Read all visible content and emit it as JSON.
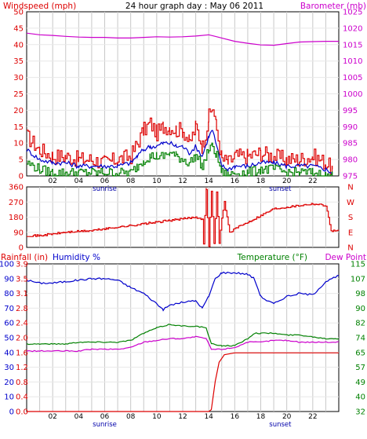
{
  "title": "24 hour graph day : May 06 2011",
  "x_ticks": [
    "02",
    "04",
    "06",
    "08",
    "10",
    "12",
    "14",
    "16",
    "18",
    "20",
    "22"
  ],
  "sunrise_label": "sunrise",
  "sunset_label": "sunset",
  "colors": {
    "red": "#dd0000",
    "green": "#008000",
    "blue": "#0000cc",
    "magenta": "#cc00cc",
    "grid": "#c8c8c8"
  },
  "chart_data": [
    {
      "type": "line",
      "panel": "wind-barometer",
      "left_axis_label": "Windspeed (mph)",
      "right_axis_label": "Barometer (mb)",
      "left_ticks": [
        "0",
        "5",
        "10",
        "15",
        "20",
        "25",
        "30",
        "35",
        "40",
        "45",
        "50"
      ],
      "right_ticks": [
        "975",
        "980",
        "985",
        "990",
        "995",
        "1000",
        "1005",
        "1010",
        "1015",
        "1020",
        "1025"
      ],
      "left_range": [
        0,
        50
      ],
      "right_range": [
        975,
        1025
      ],
      "x_range": [
        0,
        24
      ],
      "series": [
        {
          "role": "gust",
          "color": "#dd0000",
          "axis": "left",
          "x": [
            0,
            1,
            2,
            3,
            4,
            5,
            6,
            7,
            8,
            8.5,
            9,
            9.5,
            10,
            10.5,
            11,
            11.5,
            12,
            12.5,
            13,
            13.5,
            14,
            14.3,
            14.6,
            15,
            15.5,
            16,
            17,
            18,
            19,
            20,
            21,
            22,
            23,
            23.5
          ],
          "y": [
            12,
            8,
            6,
            6,
            5,
            5,
            4,
            5,
            6,
            10,
            14,
            16,
            13,
            15,
            15,
            14,
            14,
            10,
            15,
            9,
            18,
            21,
            14,
            5,
            4,
            6,
            6,
            7,
            6,
            5,
            5,
            6,
            4,
            2
          ]
        },
        {
          "role": "average",
          "color": "#0000cc",
          "axis": "left",
          "x": [
            0,
            1,
            2,
            3,
            4,
            5,
            6,
            7,
            8,
            8.5,
            9,
            9.5,
            10,
            10.5,
            11,
            11.5,
            12,
            12.5,
            13,
            13.5,
            14,
            14.3,
            14.6,
            15,
            15.5,
            16,
            17,
            18,
            19,
            20,
            21,
            22,
            23,
            23.5
          ],
          "y": [
            8,
            5,
            4,
            4,
            3,
            3,
            3,
            3,
            4,
            6,
            8,
            9,
            9,
            10,
            10,
            9,
            9,
            7,
            9,
            6,
            12,
            14,
            9,
            3,
            2,
            3,
            3,
            4,
            4,
            3,
            3,
            3,
            2,
            1
          ]
        },
        {
          "role": "minimum",
          "color": "#008000",
          "axis": "left",
          "x": [
            0,
            1,
            2,
            3,
            4,
            5,
            6,
            7,
            8,
            8.5,
            9,
            9.5,
            10,
            10.5,
            11,
            11.5,
            12,
            12.5,
            13,
            13.5,
            14,
            14.3,
            14.6,
            15,
            15.5,
            16,
            17,
            18,
            19,
            20,
            21,
            22,
            23,
            23.5
          ],
          "y": [
            4,
            2,
            1,
            1,
            1,
            1,
            1,
            1,
            1,
            3,
            5,
            6,
            6,
            6,
            7,
            6,
            5,
            4,
            6,
            3,
            8,
            9,
            6,
            1,
            0,
            1,
            1,
            2,
            2,
            1,
            1,
            1,
            0,
            0
          ]
        },
        {
          "role": "barometer",
          "color": "#cc00cc",
          "axis": "right",
          "x": [
            0,
            1,
            2,
            3,
            4,
            5,
            6,
            7,
            8,
            9,
            10,
            11,
            12,
            13,
            14,
            14.5,
            15,
            16,
            17,
            18,
            19,
            20,
            21,
            22,
            23,
            24
          ],
          "y": [
            1018.5,
            1018,
            1017.8,
            1017.5,
            1017.3,
            1017.2,
            1017.2,
            1017,
            1017,
            1017.2,
            1017.4,
            1017.3,
            1017.4,
            1017.6,
            1018,
            1017.5,
            1017,
            1016,
            1015.4,
            1014.9,
            1014.8,
            1015.3,
            1015.8,
            1015.9,
            1016,
            1016
          ]
        }
      ]
    },
    {
      "type": "line",
      "panel": "wind-direction",
      "left_ticks": [
        "0",
        "90",
        "180",
        "270",
        "360"
      ],
      "right_ticks": [
        "N",
        "E",
        "S",
        "W",
        "N"
      ],
      "left_range": [
        0,
        360
      ],
      "x_range": [
        0,
        24
      ],
      "series": [
        {
          "role": "direction",
          "color": "#dd0000",
          "x": [
            0,
            1,
            2,
            3,
            4,
            5,
            6,
            7,
            8,
            9,
            10,
            11,
            12,
            13,
            13.5,
            13.6,
            13.8,
            14,
            14.2,
            14.4,
            14.6,
            14.8,
            15,
            15.2,
            15.6,
            16,
            17,
            18,
            19,
            20,
            21,
            22,
            23,
            23.4,
            24
          ],
          "y": [
            70,
            70,
            80,
            90,
            95,
            100,
            110,
            120,
            130,
            140,
            150,
            160,
            170,
            180,
            170,
            20,
            350,
            10,
            340,
            20,
            330,
            30,
            170,
            270,
            90,
            110,
            150,
            190,
            230,
            240,
            250,
            260,
            250,
            100,
            100
          ]
        }
      ]
    },
    {
      "type": "line",
      "panel": "rain-humidity-temperature",
      "rain_axis_label": "Rainfall (in)",
      "humidity_axis_label": "Humidity %",
      "temperature_axis_label": "Temperature (°F)",
      "dewpoint_axis_label": "Dew Point",
      "humidity_ticks": [
        "0",
        "10",
        "20",
        "30",
        "40",
        "50",
        "60",
        "70",
        "80",
        "90",
        "100"
      ],
      "rain_ticks": [
        "0.0",
        "0.4",
        "0.8",
        "1.2",
        "1.6",
        "2.0",
        "2.4",
        "2.8",
        "3.1",
        "3.5",
        "3.9"
      ],
      "temp_ticks": [
        "32",
        "40",
        "49",
        "57",
        "65",
        "74",
        "82",
        "90",
        "98",
        "107",
        "115"
      ],
      "humidity_range": [
        0,
        100
      ],
      "temp_range": [
        32,
        115
      ],
      "x_range": [
        0,
        24
      ],
      "series": [
        {
          "role": "humidity",
          "color": "#0000cc",
          "axis": "humidity",
          "x": [
            0,
            1,
            2,
            3,
            4,
            5,
            6,
            7,
            8,
            9,
            10,
            10.5,
            11,
            12,
            13,
            13.5,
            14,
            14.5,
            15,
            16,
            17,
            17.5,
            18,
            18.5,
            19,
            20,
            21,
            22,
            23,
            24
          ],
          "y": [
            89,
            87,
            87,
            88,
            89,
            90,
            90,
            89,
            84,
            80,
            73,
            69,
            72,
            74,
            75,
            70,
            78,
            90,
            94,
            94,
            93,
            90,
            78,
            75,
            73,
            78,
            80,
            79,
            88,
            92
          ]
        },
        {
          "role": "temperature",
          "color": "#008000",
          "axis": "temp",
          "x": [
            0,
            1,
            2,
            3,
            4,
            5,
            6,
            7,
            8,
            9,
            10,
            11,
            12,
            13,
            13.8,
            14.2,
            15,
            16,
            17,
            17.5,
            18,
            19,
            20,
            21,
            22,
            23,
            24
          ],
          "y": [
            70,
            70,
            70,
            70,
            71,
            71,
            71,
            71,
            72,
            76,
            79,
            81,
            80,
            80,
            79,
            70,
            69,
            69,
            73,
            76,
            76,
            76,
            75,
            75,
            74,
            73,
            73
          ]
        },
        {
          "role": "dew-point",
          "color": "#cc00cc",
          "axis": "temp",
          "x": [
            0,
            1,
            2,
            3,
            4,
            5,
            6,
            7,
            8,
            9,
            10,
            11,
            12,
            13,
            13.8,
            14.2,
            15,
            16,
            17,
            18,
            19,
            20,
            21,
            22,
            23,
            24
          ],
          "y": [
            66,
            66,
            66,
            66,
            66,
            67,
            67,
            67,
            68,
            71,
            72,
            73,
            73,
            74,
            73,
            67,
            67,
            68,
            71,
            71,
            72,
            72,
            71,
            71,
            71,
            71
          ]
        },
        {
          "role": "rainfall",
          "color": "#dd0000",
          "axis": "rain",
          "x": [
            0,
            13,
            14,
            14.2,
            14.5,
            14.8,
            15.2,
            16,
            24
          ],
          "y": [
            0,
            0,
            0,
            0.05,
            0.8,
            1.3,
            1.5,
            1.55,
            1.55
          ]
        }
      ]
    }
  ]
}
